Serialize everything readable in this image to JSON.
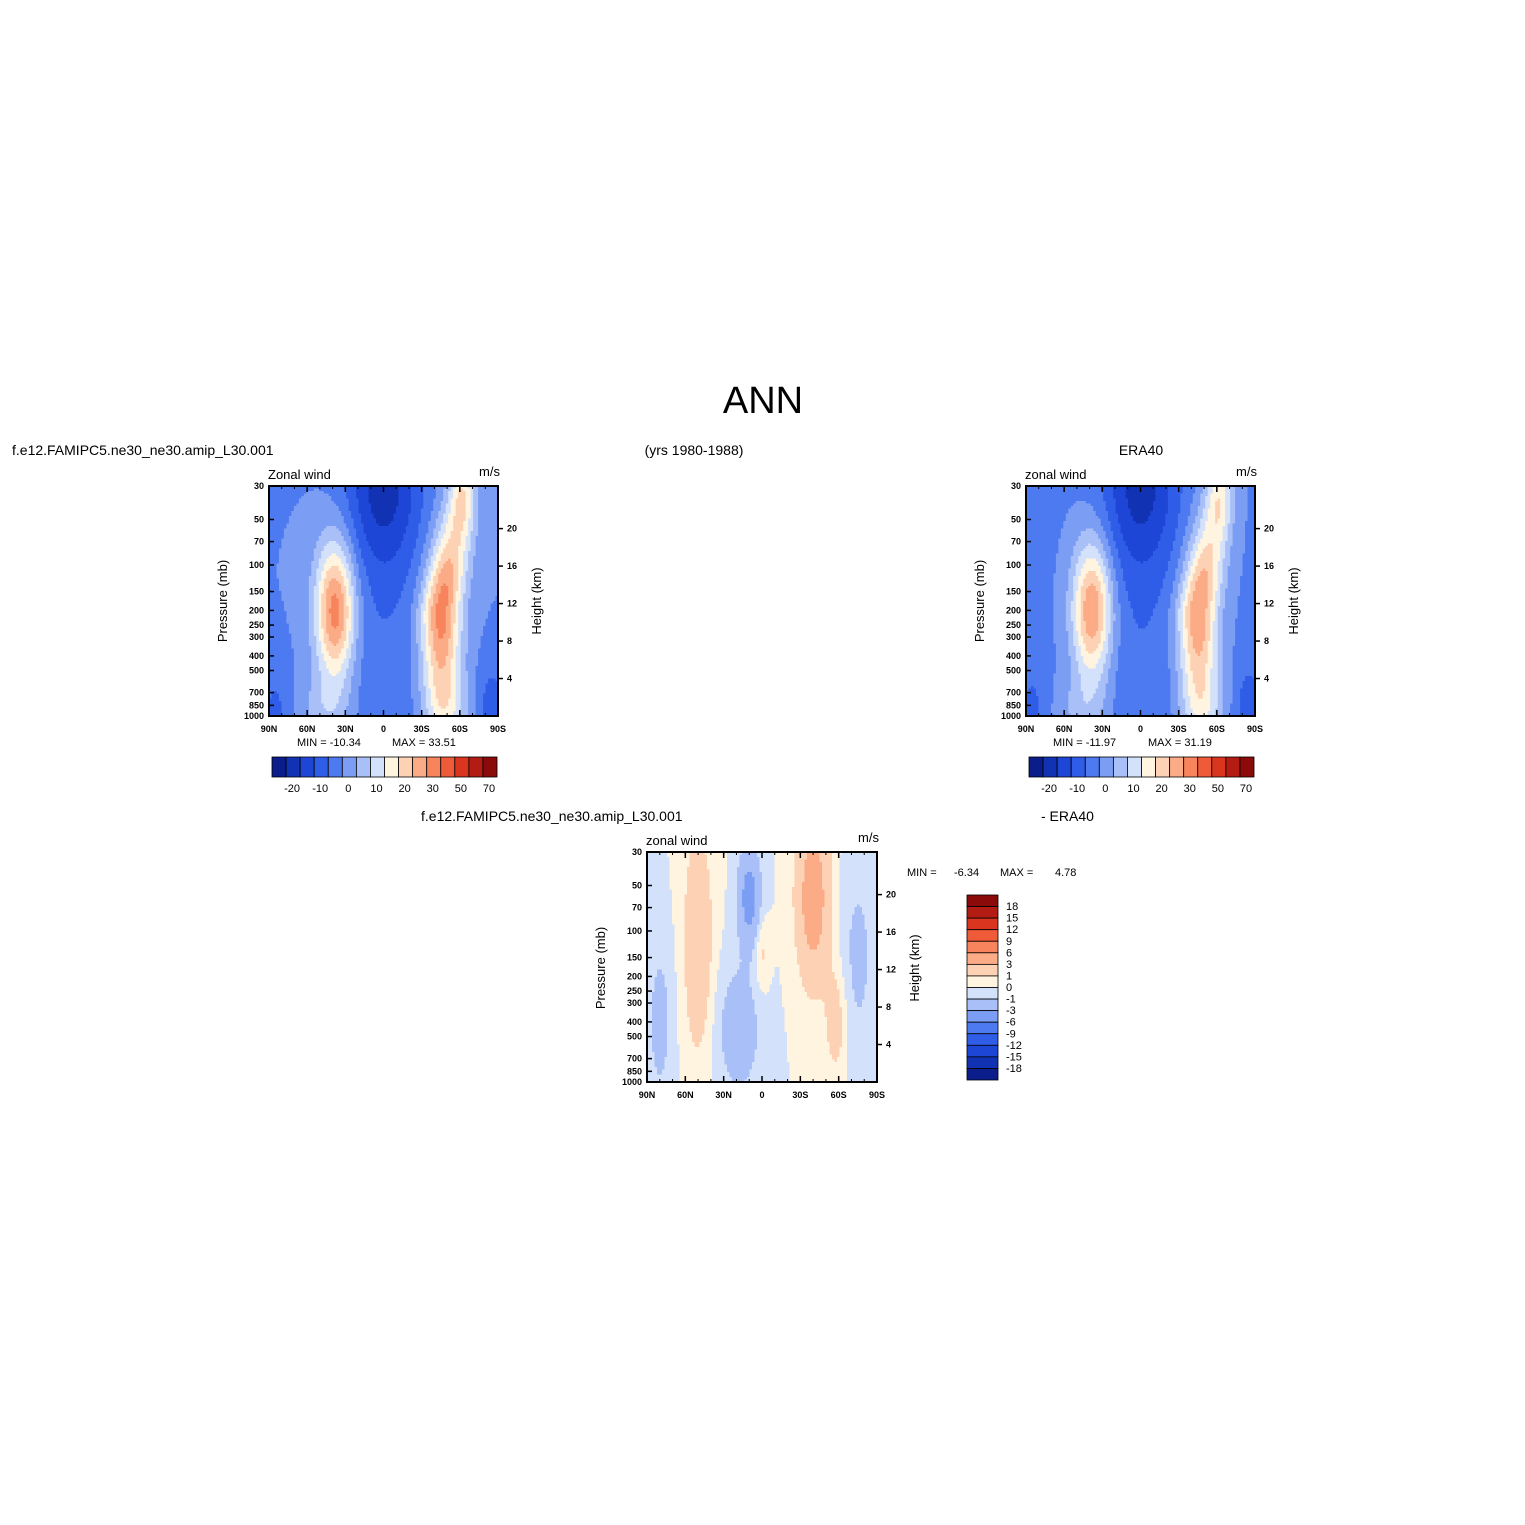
{
  "header": {
    "title": "ANN",
    "case_name": "f.e12.FAMIPC5.ne30_ne30.amip_L30.001",
    "years": "(yrs 1980-1988)",
    "obs_name": "ERA40"
  },
  "palette_main": [
    "#0b1d8a",
    "#1232b4",
    "#1e46d6",
    "#2f5de8",
    "#4d7af0",
    "#7b9ef4",
    "#a8c0f7",
    "#d3e1fa",
    "#fff4df",
    "#fdd2b4",
    "#fbab85",
    "#f7845d",
    "#ef5a38",
    "#d9351f",
    "#b31c12",
    "#8b0b0b"
  ],
  "palette_diff": [
    "#0b1d8a",
    "#1232b4",
    "#1e46d6",
    "#2f5de8",
    "#4d7af0",
    "#7b9ef4",
    "#a8c0f7",
    "#d3e1fa",
    "#fff4df",
    "#fdd2b4",
    "#fbab85",
    "#f7845d",
    "#ef5a38",
    "#d9351f",
    "#b31c12",
    "#8b0b0b"
  ],
  "chart_data": [
    {
      "type": "heatmap",
      "title_left": "Zonal wind",
      "title_right": "m/s",
      "ylabel": "Pressure (mb)",
      "ylabel_right": "Height (km)",
      "x_ticks": [
        "90N",
        "60N",
        "30N",
        "0",
        "30S",
        "60S",
        "90S"
      ],
      "x_range": [
        90,
        -90
      ],
      "y_ticks": [
        "30",
        "50",
        "70",
        "100",
        "150",
        "200",
        "250",
        "300",
        "400",
        "500",
        "700",
        "850",
        "1000"
      ],
      "y_range": [
        1000,
        30
      ],
      "y_scale": "log",
      "right_ticks": [
        "20",
        "16",
        "12",
        "8",
        "4"
      ],
      "min_label": "MIN = -10.34",
      "max_label": "MAX = 33.51",
      "colorbar_labels": [
        "-20",
        "-10",
        "0",
        "10",
        "20",
        "30",
        "50",
        "70"
      ],
      "jets": [
        {
          "name": "",
          "lat": 38,
          "p": 200,
          "peak": 33.5
        },
        {
          "name": "",
          "lat": -45,
          "p": 200,
          "peak": 33.0
        }
      ]
    },
    {
      "type": "heatmap",
      "title_left": "zonal wind",
      "title_right": "m/s",
      "ylabel": "Pressure (mb)",
      "ylabel_right": "Height (km)",
      "x_ticks": [
        "90N",
        "60N",
        "30N",
        "0",
        "30S",
        "60S",
        "90S"
      ],
      "x_range": [
        90,
        -90
      ],
      "y_ticks": [
        "30",
        "50",
        "70",
        "100",
        "150",
        "200",
        "250",
        "300",
        "400",
        "500",
        "700",
        "850",
        "1000"
      ],
      "y_range": [
        1000,
        30
      ],
      "y_scale": "log",
      "right_ticks": [
        "20",
        "16",
        "12",
        "8",
        "4"
      ],
      "min_label": "MIN = -11.97",
      "max_label": "MAX = 31.19",
      "colorbar_labels": [
        "-20",
        "-10",
        "0",
        "10",
        "20",
        "30",
        "50",
        "70"
      ],
      "jets": [
        {
          "name": "",
          "lat": 38,
          "p": 200,
          "peak": 31.2
        },
        {
          "name": "",
          "lat": -45,
          "p": 200,
          "peak": 30.0
        }
      ]
    },
    {
      "type": "heatmap",
      "title_case": "f.e12.FAMIPC5.ne30_ne30.amip_L30.001",
      "title_obs": "- ERA40",
      "title_left": "zonal wind",
      "title_right": "m/s",
      "ylabel": "Pressure (mb)",
      "ylabel_right": "Height (km)",
      "x_ticks": [
        "90N",
        "60N",
        "30N",
        "0",
        "30S",
        "60S",
        "90S"
      ],
      "x_range": [
        90,
        -90
      ],
      "y_ticks": [
        "30",
        "50",
        "70",
        "100",
        "150",
        "200",
        "250",
        "300",
        "400",
        "500",
        "700",
        "850",
        "1000"
      ],
      "y_range": [
        1000,
        30
      ],
      "y_scale": "log",
      "right_ticks": [
        "20",
        "16",
        "12",
        "8",
        "4"
      ],
      "min_label": "MIN =",
      "min_value": "-6.34",
      "max_label": "MAX =",
      "max_value": "4.78",
      "colorbar_labels": [
        "18",
        "15",
        "12",
        "9",
        "6",
        "3",
        "1",
        "0",
        "-1",
        "-3",
        "-6",
        "-9",
        "-12",
        "-15",
        "-18"
      ]
    }
  ]
}
